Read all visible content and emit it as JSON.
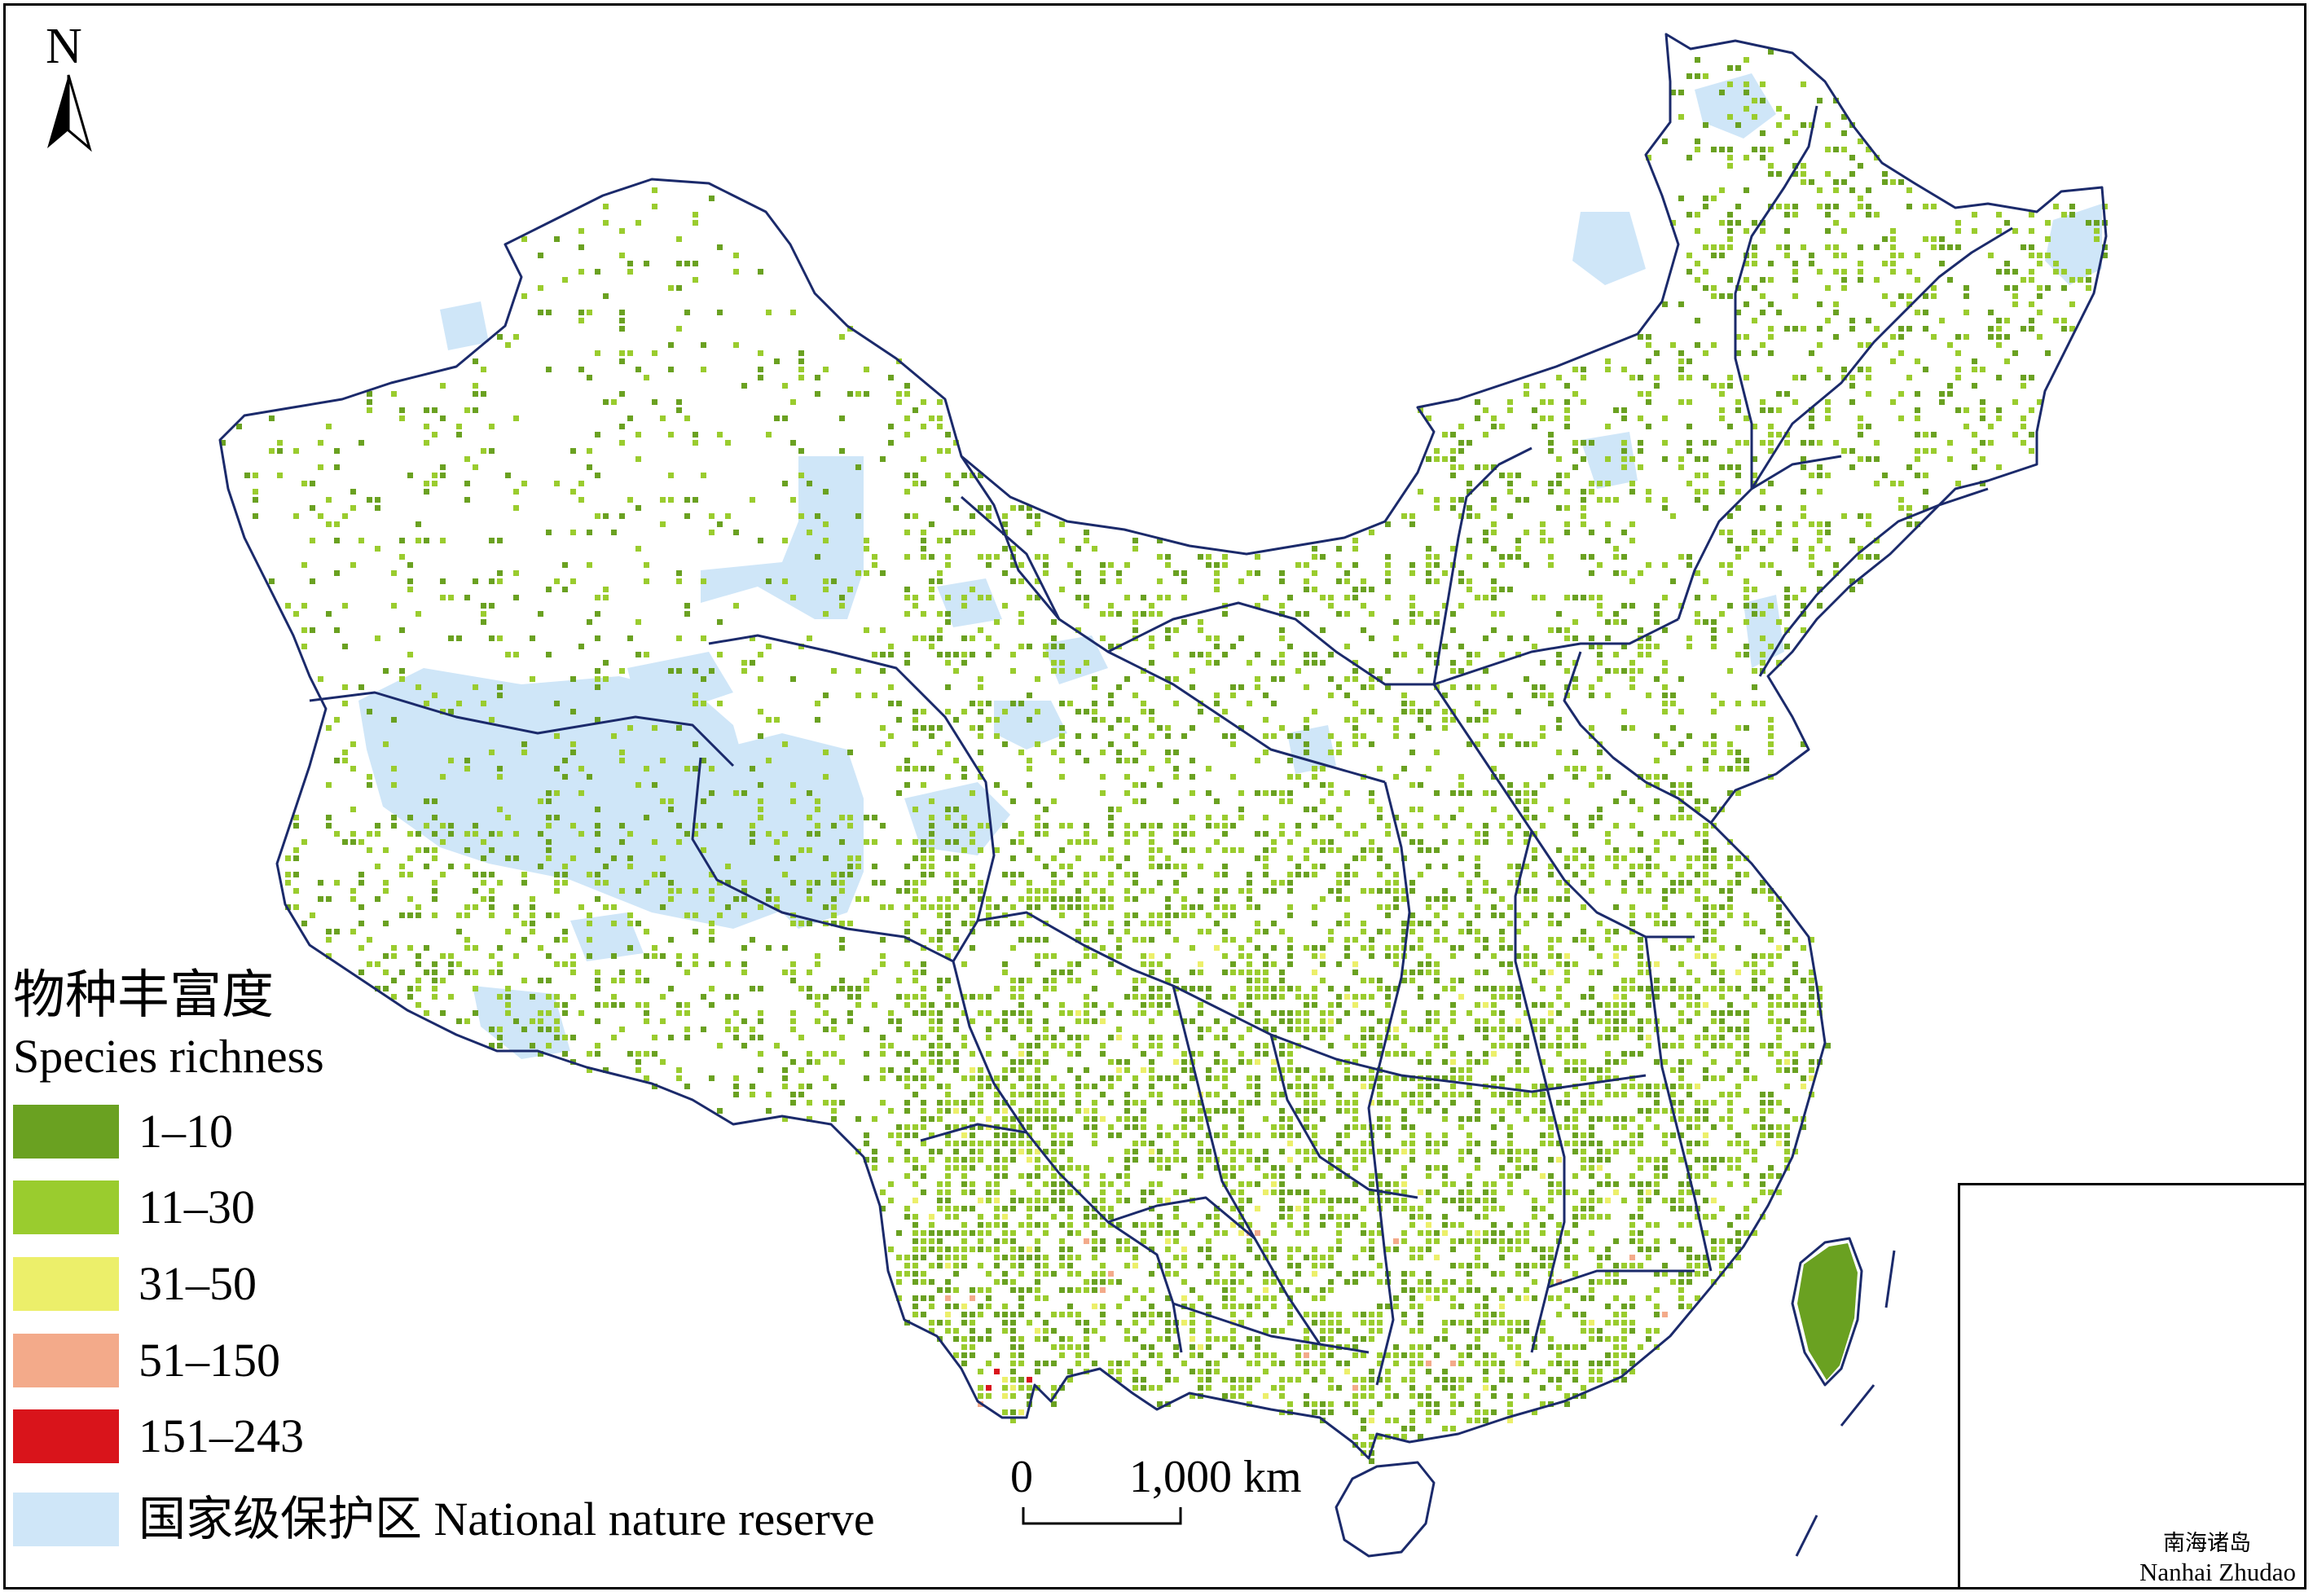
{
  "north": {
    "label": "N"
  },
  "legend": {
    "title_cn": "物种丰富度",
    "title_en": "Species richness",
    "items": [
      {
        "label": "1–10",
        "color": "#6aa121"
      },
      {
        "label": "11–30",
        "color": "#9acc2e"
      },
      {
        "label": "31–50",
        "color": "#ecef6a"
      },
      {
        "label": "51–150",
        "color": "#f3aa8a"
      },
      {
        "label": "151–243",
        "color": "#d9141b"
      },
      {
        "label": "国家级保护区 National nature reserve",
        "color": "#cfe6f8"
      }
    ]
  },
  "scale_bar": {
    "start_label": "0",
    "end_label": "1,000 km"
  },
  "inset": {
    "label_cn": "南海诸岛",
    "label_en": "Nanhai Zhudao"
  },
  "colors": {
    "boundary": "#1b2a6b",
    "reserve": "#cfe6f8",
    "richness_low": "#6aa121",
    "richness_mid": "#9acc2e",
    "richness_high": "#ecef6a",
    "richness_higher": "#f3aa8a",
    "richness_top": "#d9141b"
  }
}
